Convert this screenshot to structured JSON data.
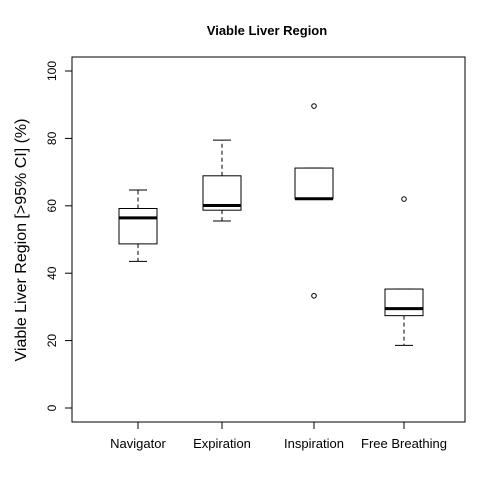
{
  "chart_data": {
    "type": "box",
    "title": "Viable Liver Region",
    "ylabel": "Viable Liver Region [>95% CI] (%)",
    "xlabel": "",
    "ylim": [
      0,
      100
    ],
    "yticks": [
      0,
      20,
      40,
      60,
      80,
      100
    ],
    "grid": false,
    "categories": [
      "Navigator",
      "Expiration",
      "Inspiration",
      "Free Breathing"
    ],
    "boxes": [
      {
        "category": "Navigator",
        "whisker_low": 43.5,
        "q1": 48.7,
        "median": 56.4,
        "q3": 59.2,
        "whisker_high": 64.7,
        "outliers": []
      },
      {
        "category": "Expiration",
        "whisker_low": 55.5,
        "q1": 58.7,
        "median": 60.1,
        "q3": 68.9,
        "whisker_high": 79.5,
        "outliers": []
      },
      {
        "category": "Inspiration",
        "whisker_low": 62.1,
        "q1": 62.1,
        "median": 62.1,
        "q3": 71.2,
        "whisker_high": 71.2,
        "outliers": [
          33.3,
          89.6
        ]
      },
      {
        "category": "Free Breathing",
        "whisker_low": 18.6,
        "q1": 27.4,
        "median": 29.5,
        "q3": 35.3,
        "whisker_high": 35.3,
        "outliers": [
          62.0
        ]
      }
    ]
  }
}
